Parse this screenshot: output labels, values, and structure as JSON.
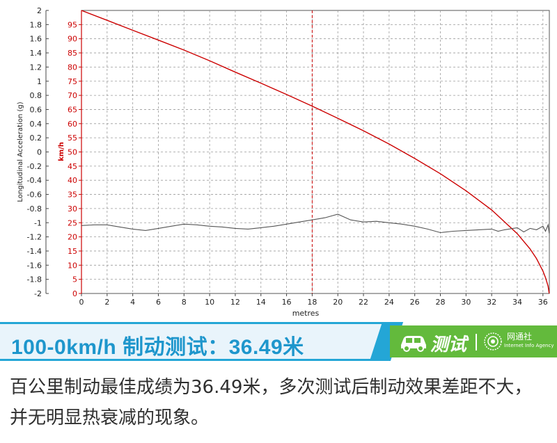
{
  "chart_data": {
    "type": "line",
    "xlabel": "metres",
    "xlim": [
      0,
      36.5
    ],
    "x_ticks": [
      "0",
      "2",
      "4",
      "6",
      "8",
      "10",
      "12",
      "14",
      "16",
      "18",
      "20",
      "22",
      "24",
      "26",
      "28",
      "30",
      "32",
      "34",
      "36"
    ],
    "left_axis": {
      "label": "Longitudinal Acceleration (g)",
      "ylim": [
        -2,
        2
      ],
      "ticks": [
        "2",
        "1.8",
        "1.6",
        "1.4",
        "1.2",
        "1",
        "0.8",
        "0.6",
        "0.4",
        "0.2",
        "0",
        "-0.2",
        "-0.4",
        "-0.6",
        "-0.8",
        "-1",
        "-1.2",
        "-1.4",
        "-1.6",
        "-1.8",
        "-2"
      ]
    },
    "right_axis": {
      "label": "km/h",
      "ylim": [
        0,
        100
      ],
      "ticks": [
        "95",
        "90",
        "85",
        "80",
        "75",
        "70",
        "65",
        "60",
        "55",
        "50",
        "45",
        "40",
        "35",
        "30",
        "25",
        "20",
        "15",
        "10",
        "5",
        "0"
      ],
      "color": "#cc0000"
    },
    "reference_line_x": 18,
    "series": [
      {
        "axis": "right",
        "color": "#cc0000",
        "x": [
          0,
          2,
          4,
          6,
          8,
          10,
          12,
          14,
          16,
          18,
          20,
          22,
          24,
          26,
          28,
          30,
          32,
          34,
          35,
          35.5,
          36,
          36.2,
          36.4,
          36.49
        ],
        "values": [
          100,
          96.5,
          93,
          89.5,
          86,
          82.2,
          78.2,
          74.3,
          70.3,
          66.2,
          61.9,
          57.5,
          52.8,
          47.7,
          42.3,
          36.3,
          29.5,
          21.1,
          15.7,
          12.3,
          7.9,
          5.6,
          2.6,
          0
        ]
      },
      {
        "axis": "left",
        "color": "#555555",
        "x": [
          0,
          1,
          2,
          3,
          4,
          5,
          6,
          7,
          8,
          9,
          10,
          11,
          12,
          13,
          14,
          15,
          16,
          17,
          18,
          19,
          20,
          20.5,
          21,
          22,
          23,
          24,
          25,
          26,
          27,
          28,
          29,
          30,
          31,
          32,
          32.5,
          33,
          34,
          34.5,
          35,
          35.5,
          36,
          36.2,
          36.4,
          36.49
        ],
        "values": [
          -1.04,
          -1.03,
          -1.03,
          -1.06,
          -1.09,
          -1.11,
          -1.08,
          -1.05,
          -1.02,
          -1.03,
          -1.05,
          -1.06,
          -1.08,
          -1.09,
          -1.07,
          -1.05,
          -1.02,
          -0.99,
          -0.96,
          -0.93,
          -0.88,
          -0.92,
          -0.96,
          -0.99,
          -0.98,
          -1.0,
          -1.02,
          -1.05,
          -1.09,
          -1.14,
          -1.12,
          -1.11,
          -1.1,
          -1.09,
          -1.12,
          -1.1,
          -1.07,
          -1.13,
          -1.08,
          -1.1,
          -1.05,
          -1.12,
          -1.03,
          -1.15
        ]
      }
    ],
    "grid": true
  },
  "banner": {
    "title": "100-0km/h 制动测试：36.49米",
    "test_label": "测试",
    "agency_cn": "网通社",
    "agency_en": "Internet Info Agency",
    "accent": "#24a6d6",
    "green": "#63ba3c",
    "car_icon": "car-icon",
    "agency_icon": "globe-icon"
  },
  "caption": {
    "text": "百公里制动最佳成绩为36.49米，多次测试后制动效果差距不大，并无明显热衰减的现象。"
  }
}
